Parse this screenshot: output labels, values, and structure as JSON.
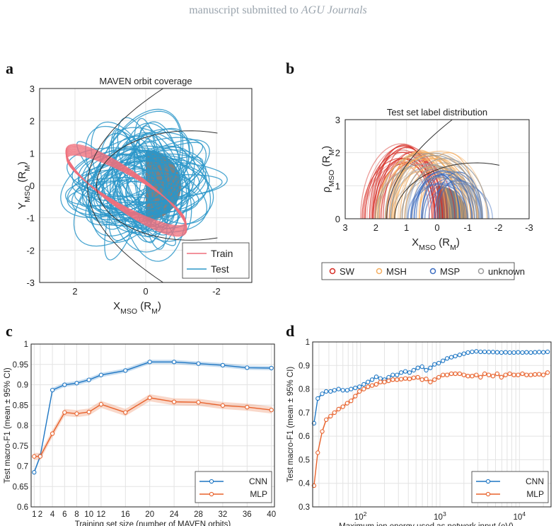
{
  "header": {
    "prefix": "manuscript submitted to ",
    "journal": "AGU Journals"
  },
  "panels": {
    "a": "a",
    "b": "b",
    "c": "c",
    "d": "d"
  },
  "colors": {
    "train": "#ef6f7c",
    "test": "#2b97c9",
    "sw": "#d62a22",
    "msh": "#f4ad5f",
    "msp": "#3b6cc0",
    "unknown": "#9a9a9a",
    "cnn": "#1f77c4",
    "mlp": "#e8622c",
    "planet": "#808080"
  },
  "chart_data": [
    {
      "id": "a",
      "type": "line",
      "title": "MAVEN orbit coverage",
      "xlabel": "X",
      "xlabel_sub": "MSO",
      "xlabel_unit": "(R",
      "xlabel_unit_sub": "M",
      "xlabel_end": ")",
      "ylabel": "Y",
      "ylabel_sub": "MSO",
      "ylabel_unit": "(R",
      "ylabel_unit_sub": "M",
      "ylabel_end": ")",
      "xlim": [
        3,
        -3
      ],
      "ylim": [
        -3,
        3
      ],
      "xticks": [
        "2",
        "0",
        "-2"
      ],
      "xtick_values": [
        2,
        0,
        -2
      ],
      "yticks": [
        "3",
        "2",
        "1",
        "0",
        "-1",
        "-2",
        "-3"
      ],
      "ytick_values": [
        3,
        2,
        1,
        0,
        -1,
        -2,
        -3
      ],
      "series": [
        {
          "name": "Train"
        },
        {
          "name": "Test"
        }
      ],
      "legend": "bottom-right"
    },
    {
      "id": "b",
      "type": "line",
      "title": "Test set label distribution",
      "xlabel": "X",
      "xlabel_sub": "MSO",
      "xlabel_unit": "(R",
      "xlabel_unit_sub": "M",
      "xlabel_end": ")",
      "ylabel": "ρ",
      "ylabel_sub": "MSO",
      "ylabel_unit": "(R",
      "ylabel_unit_sub": "M",
      "ylabel_end": ")",
      "xlim": [
        3,
        -3
      ],
      "ylim": [
        0,
        3
      ],
      "xticks": [
        "3",
        "2",
        "1",
        "0",
        "-1",
        "-2",
        "-3"
      ],
      "xtick_values": [
        3,
        2,
        1,
        0,
        -1,
        -2,
        -3
      ],
      "yticks": [
        "3",
        "2",
        "1",
        "0"
      ],
      "ytick_values": [
        3,
        2,
        1,
        0
      ],
      "series": [
        {
          "name": "SW"
        },
        {
          "name": "MSH"
        },
        {
          "name": "MSP"
        },
        {
          "name": "unknown"
        }
      ],
      "legend": "bottom-outside"
    },
    {
      "id": "c",
      "type": "line",
      "xlabel": "Training set size (number of MAVEN orbits)",
      "ylabel": "Test macro-F1 (mean ± 95% CI)",
      "xlim": [
        0.5,
        40.5
      ],
      "ylim": [
        0.6,
        1.0
      ],
      "xticks": [
        "1",
        "2",
        "4",
        "6",
        "8",
        "10",
        "12",
        "16",
        "20",
        "24",
        "28",
        "32",
        "36",
        "40"
      ],
      "xtick_values": [
        1,
        2,
        4,
        6,
        8,
        10,
        12,
        16,
        20,
        24,
        28,
        32,
        36,
        40
      ],
      "yticks": [
        "1",
        "0.95",
        "0.9",
        "0.85",
        "0.8",
        "0.75",
        "0.7",
        "0.65",
        "0.6"
      ],
      "ytick_values": [
        1,
        0.95,
        0.9,
        0.85,
        0.8,
        0.75,
        0.7,
        0.65,
        0.6
      ],
      "x": [
        1,
        2,
        4,
        6,
        8,
        10,
        12,
        16,
        20,
        24,
        28,
        32,
        36,
        40
      ],
      "series": [
        {
          "name": "CNN",
          "values": [
            0.685,
            0.725,
            0.887,
            0.9,
            0.904,
            0.912,
            0.924,
            0.935,
            0.956,
            0.956,
            0.952,
            0.948,
            0.942,
            0.941
          ]
        },
        {
          "name": "MLP",
          "values": [
            0.724,
            0.724,
            0.78,
            0.832,
            0.829,
            0.833,
            0.852,
            0.832,
            0.868,
            0.858,
            0.857,
            0.849,
            0.845,
            0.838
          ]
        }
      ],
      "legend": "bottom-right"
    },
    {
      "id": "d",
      "type": "line",
      "xlabel": "Maximum ion energy used as network input (eV)",
      "ylabel": "Test macro-F1 (mean ± 95% CI)",
      "xscale": "log",
      "xlim": [
        25,
        25000
      ],
      "ylim": [
        0.3,
        1.0
      ],
      "xticks_base": "10",
      "xticks_exp": [
        "2",
        "3",
        "4"
      ],
      "xtick_values": [
        100,
        1000,
        10000
      ],
      "yticks": [
        "1",
        "0.9",
        "0.8",
        "0.7",
        "0.6",
        "0.5",
        "0.4",
        "0.3"
      ],
      "ytick_values": [
        1,
        0.9,
        0.8,
        0.7,
        0.6,
        0.5,
        0.4,
        0.3
      ],
      "x": [
        26,
        29,
        33,
        37,
        42,
        47,
        53,
        60,
        68,
        76,
        86,
        97,
        110,
        124,
        140,
        158,
        178,
        200,
        226,
        255,
        288,
        325,
        367,
        414,
        467,
        527,
        595,
        671,
        757,
        854,
        964,
        1090,
        1230,
        1390,
        1560,
        1770,
        2000,
        2250,
        2540,
        2870,
        3240,
        3650,
        4120,
        4650,
        5250,
        5930,
        6690,
        7550,
        8520,
        9620,
        10900,
        12300,
        13900,
        15700,
        17700,
        20000,
        22600
      ],
      "series": [
        {
          "name": "CNN",
          "values": [
            0.655,
            0.76,
            0.78,
            0.79,
            0.79,
            0.795,
            0.8,
            0.795,
            0.795,
            0.8,
            0.805,
            0.81,
            0.82,
            0.83,
            0.84,
            0.852,
            0.845,
            0.84,
            0.85,
            0.86,
            0.86,
            0.87,
            0.875,
            0.87,
            0.88,
            0.89,
            0.895,
            0.88,
            0.89,
            0.905,
            0.91,
            0.92,
            0.93,
            0.935,
            0.94,
            0.945,
            0.95,
            0.955,
            0.958,
            0.96,
            0.958,
            0.958,
            0.957,
            0.957,
            0.956,
            0.955,
            0.956,
            0.955,
            0.955,
            0.956,
            0.955,
            0.956,
            0.955,
            0.956,
            0.957,
            0.956,
            0.958
          ]
        },
        {
          "name": "MLP",
          "values": [
            0.39,
            0.53,
            0.62,
            0.67,
            0.685,
            0.7,
            0.715,
            0.725,
            0.74,
            0.75,
            0.77,
            0.79,
            0.8,
            0.81,
            0.815,
            0.82,
            0.83,
            0.83,
            0.835,
            0.84,
            0.84,
            0.842,
            0.845,
            0.843,
            0.848,
            0.85,
            0.84,
            0.843,
            0.83,
            0.84,
            0.85,
            0.86,
            0.86,
            0.865,
            0.865,
            0.865,
            0.86,
            0.855,
            0.855,
            0.86,
            0.85,
            0.865,
            0.86,
            0.855,
            0.865,
            0.85,
            0.86,
            0.865,
            0.86,
            0.86,
            0.865,
            0.86,
            0.86,
            0.862,
            0.863,
            0.86,
            0.87
          ]
        }
      ],
      "legend": "bottom-right"
    }
  ]
}
